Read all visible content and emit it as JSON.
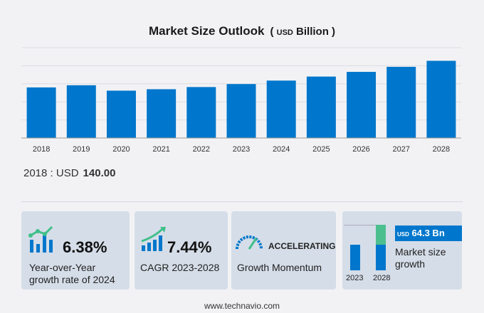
{
  "chart_data": {
    "type": "bar",
    "title": "Market Size Outlook",
    "unit_prefix": "USD",
    "unit": "Billion",
    "categories": [
      "2018",
      "2019",
      "2020",
      "2021",
      "2022",
      "2023",
      "2024",
      "2025",
      "2026",
      "2027",
      "2028"
    ],
    "values": [
      140,
      146,
      131,
      135,
      141,
      149.3,
      158.9,
      170,
      183,
      197,
      213.6
    ],
    "ylim": [
      0,
      250
    ],
    "grid": true,
    "color": "#0077cc"
  },
  "note": {
    "label": "2018 : USD",
    "value": "140.00"
  },
  "cards": {
    "yoy": {
      "value": "6.38%",
      "label1": "Year-over-Year",
      "label2": "growth rate of 2024"
    },
    "cagr": {
      "value": "7.44%",
      "label": "CAGR  2023-2028"
    },
    "momentum": {
      "value": "ACCELERATING",
      "label": "Growth Momentum"
    },
    "growth": {
      "usd": "USD",
      "value": "64.3 Bn",
      "label1": "Market size",
      "label2": "growth",
      "year1": "2023",
      "year2": "2028"
    }
  },
  "footer": "www.technavio.com"
}
